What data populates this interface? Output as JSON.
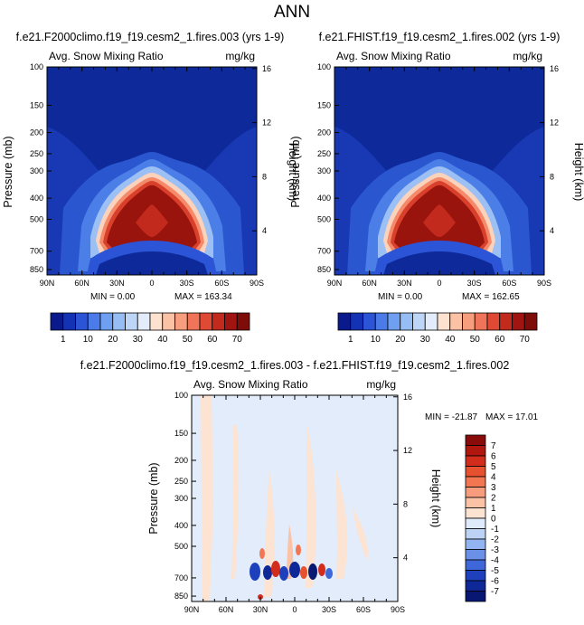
{
  "page_title": "ANN",
  "chart_data": [
    {
      "type": "heatmap",
      "title": "f.e21.F2000climo.f19_f19.cesm2_1.fires.003 (yrs 1-9)",
      "subtitle_left": "Avg. Snow Mixing Ratio",
      "subtitle_right": "mg/kg",
      "xlabel": "",
      "ylabel": "Pressure (mb)",
      "ylabel_right": "Height (km)",
      "x_ticks": [
        "90N",
        "60N",
        "30N",
        "0",
        "30S",
        "60S",
        "90S"
      ],
      "y_ticks": [
        "100",
        "150",
        "200",
        "250",
        "300",
        "400",
        "500",
        "700",
        "850"
      ],
      "y_right_ticks": [
        "16",
        "12",
        "8",
        "4"
      ],
      "min_label": "MIN =  0.00",
      "max_label": "MAX = 163.34",
      "min": 0.0,
      "max": 163.34,
      "colorbar_labels": [
        "1",
        "10",
        "20",
        "30",
        "40",
        "50",
        "60",
        "70"
      ],
      "colorbar_colors": [
        "#0a1a8c",
        "#1433b4",
        "#2b55d6",
        "#4a7be8",
        "#6f9ff0",
        "#96bdf4",
        "#bdd6f8",
        "#e2ecfa",
        "#fde2d0",
        "#fbc2a6",
        "#f79e7e",
        "#f0745a",
        "#e04a34",
        "#c22a1e",
        "#a01512",
        "#7e0d0a"
      ]
    },
    {
      "type": "heatmap",
      "title": "f.e21.FHIST.f19_f19.cesm2_1.fires.002 (yrs 1-9)",
      "subtitle_left": "Avg. Snow Mixing Ratio",
      "subtitle_right": "mg/kg",
      "xlabel": "",
      "ylabel": "Pressure (mb)",
      "ylabel_right": "Height (km)",
      "x_ticks": [
        "90N",
        "60N",
        "30N",
        "0",
        "30S",
        "60S",
        "90S"
      ],
      "y_ticks": [
        "100",
        "150",
        "200",
        "250",
        "300",
        "400",
        "500",
        "700",
        "850"
      ],
      "y_right_ticks": [
        "16",
        "12",
        "8",
        "4"
      ],
      "min_label": "MIN =  0.00",
      "max_label": "MAX = 162.65",
      "min": 0.0,
      "max": 162.65,
      "colorbar_labels": [
        "1",
        "10",
        "20",
        "30",
        "40",
        "50",
        "60",
        "70"
      ],
      "colorbar_colors": [
        "#0a1a8c",
        "#1433b4",
        "#2b55d6",
        "#4a7be8",
        "#6f9ff0",
        "#96bdf4",
        "#bdd6f8",
        "#e2ecfa",
        "#fde2d0",
        "#fbc2a6",
        "#f79e7e",
        "#f0745a",
        "#e04a34",
        "#c22a1e",
        "#a01512",
        "#7e0d0a"
      ]
    },
    {
      "type": "heatmap",
      "title": "f.e21.F2000climo.f19_f19.cesm2_1.fires.003 - f.e21.FHIST.f19_f19.cesm2_1.fires.002",
      "subtitle_left": "Avg. Snow Mixing Ratio",
      "subtitle_right": "mg/kg",
      "xlabel": "",
      "ylabel": "Pressure (mb)",
      "ylabel_right": "Height (km)",
      "x_ticks": [
        "90N",
        "60N",
        "30N",
        "0",
        "30S",
        "60S",
        "90S"
      ],
      "y_ticks": [
        "100",
        "150",
        "200",
        "250",
        "300",
        "400",
        "500",
        "700",
        "850"
      ],
      "y_right_ticks": [
        "16",
        "12",
        "8",
        "4"
      ],
      "min_label": "MIN = -21.87",
      "max_label": "MAX =  17.01",
      "min": -21.87,
      "max": 17.01,
      "colorbar_labels": [
        "7",
        "6",
        "5",
        "4",
        "3",
        "2",
        "1",
        "0",
        "-1",
        "-2",
        "-3",
        "-4",
        "-5",
        "-6",
        "-7"
      ],
      "colorbar_colors": [
        "#8a0c0a",
        "#b0180f",
        "#d22d1c",
        "#e8512f",
        "#f27652",
        "#f79c7c",
        "#fbc2a6",
        "#fde3d2",
        "#dfeafa",
        "#bcd3f6",
        "#92b4f0",
        "#6a90e8",
        "#3e67da",
        "#1e40bc",
        "#0f2898",
        "#081872"
      ]
    }
  ]
}
